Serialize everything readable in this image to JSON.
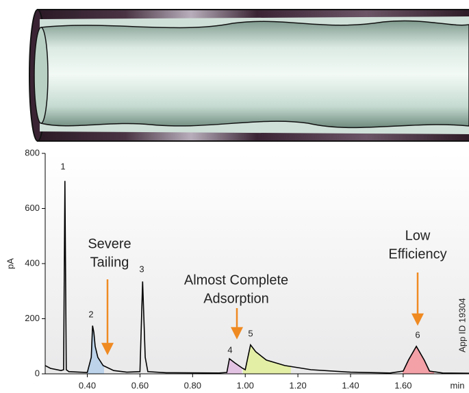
{
  "chart_data": {
    "type": "line",
    "ylabel": "pA",
    "xlabel": "min",
    "note": "App ID 19304",
    "color": "#000000",
    "xlim": [
      0.24,
      1.85
    ],
    "ylim": [
      0,
      800
    ],
    "yticks": [
      0,
      200,
      400,
      600,
      800
    ],
    "xticks": [
      {
        "value": 0.4,
        "label": "0.40"
      },
      {
        "value": 0.6,
        "label": "0.60"
      },
      {
        "value": 0.8,
        "label": "0.80"
      },
      {
        "value": 1.0,
        "label": "1.00"
      },
      {
        "value": 1.2,
        "label": "1.20"
      },
      {
        "value": 1.4,
        "label": "1.40"
      },
      {
        "value": 1.6,
        "label": "1.60"
      }
    ],
    "x": [
      0.24,
      0.26,
      0.3,
      0.31,
      0.315,
      0.32,
      0.33,
      0.4,
      0.415,
      0.42,
      0.425,
      0.43,
      0.44,
      0.46,
      0.5,
      0.55,
      0.6,
      0.61,
      0.62,
      0.63,
      0.7,
      0.9,
      0.93,
      0.94,
      0.96,
      0.99,
      1.0,
      1.01,
      1.02,
      1.04,
      1.08,
      1.15,
      1.25,
      1.4,
      1.55,
      1.6,
      1.62,
      1.65,
      1.68,
      1.7,
      1.75,
      1.85
    ],
    "y": [
      30,
      20,
      12,
      15,
      700,
      15,
      8,
      5,
      60,
      175,
      150,
      100,
      60,
      30,
      12,
      6,
      8,
      335,
      60,
      8,
      4,
      3,
      5,
      55,
      40,
      20,
      15,
      60,
      105,
      80,
      50,
      30,
      15,
      6,
      3,
      10,
      50,
      100,
      50,
      10,
      3,
      2
    ],
    "peak_labels": [
      "1",
      "2",
      "3",
      "4",
      "5",
      "6"
    ],
    "callouts": [
      [
        "Severe",
        "Tailing"
      ],
      [
        "Almost Complete",
        "Adsorption"
      ],
      [
        "Low",
        "Efficiency"
      ]
    ]
  }
}
